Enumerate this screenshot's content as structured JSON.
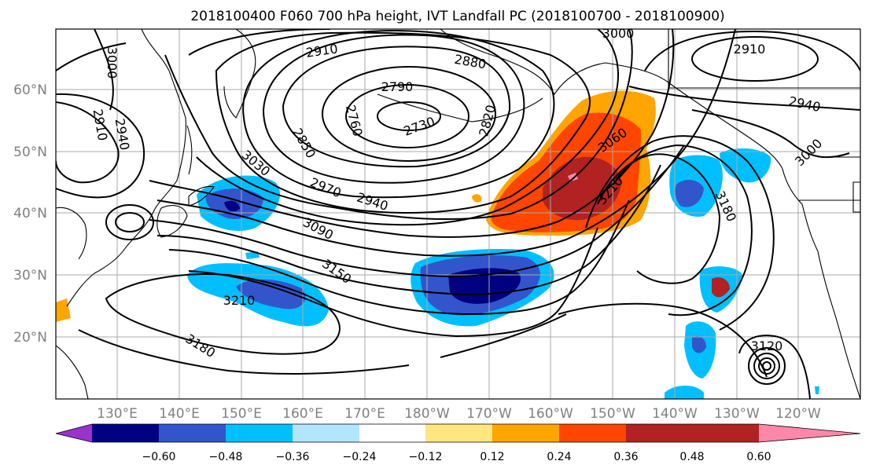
{
  "title": "2018100400 F060 700 hPa height, IVT Landfall PC (2018100700 - 2018100900)",
  "map": {
    "lat_labels": [
      "60°N",
      "50°N",
      "40°N",
      "30°N",
      "20°N"
    ],
    "lon_labels": [
      "130°E",
      "140°E",
      "150°E",
      "160°E",
      "170°E",
      "180°W",
      "170°W",
      "160°W",
      "150°W",
      "140°W",
      "130°W",
      "120°W"
    ],
    "lat_values": [
      60,
      50,
      40,
      30,
      20
    ],
    "lon_values": [
      130,
      140,
      150,
      160,
      170,
      180,
      190,
      200,
      210,
      220,
      230,
      240
    ],
    "lon_range": [
      120,
      250
    ],
    "lat_range": [
      10,
      70
    ],
    "contour_labels": [
      "3000",
      "2910",
      "2880",
      "2790",
      "2730",
      "2760",
      "2820",
      "2850",
      "2910",
      "2940",
      "3000",
      "2910",
      "2940",
      "3000",
      "3030",
      "2970",
      "2940",
      "3090",
      "3060",
      "3210",
      "3180",
      "3150",
      "3210",
      "3180",
      "3120"
    ]
  },
  "colorbar": {
    "tick_labels": [
      "−0.60",
      "−0.48",
      "−0.36",
      "−0.24",
      "−0.12",
      "0.12",
      "0.24",
      "0.36",
      "0.48",
      "0.60"
    ],
    "colors": [
      "#9933cc",
      "#000080",
      "#3355cc",
      "#00bfff",
      "#b3e5fc",
      "#ffffff",
      "#ffe680",
      "#ffa500",
      "#ff4500",
      "#b22222",
      "#ff88aa"
    ]
  },
  "colors": {
    "neg_strong": "#000080",
    "neg_mid": "#3355cc",
    "neg_weak": "#00bfff",
    "pos_weak": "#ffa500",
    "pos_mid": "#ff4500",
    "pos_strong": "#b22222"
  }
}
